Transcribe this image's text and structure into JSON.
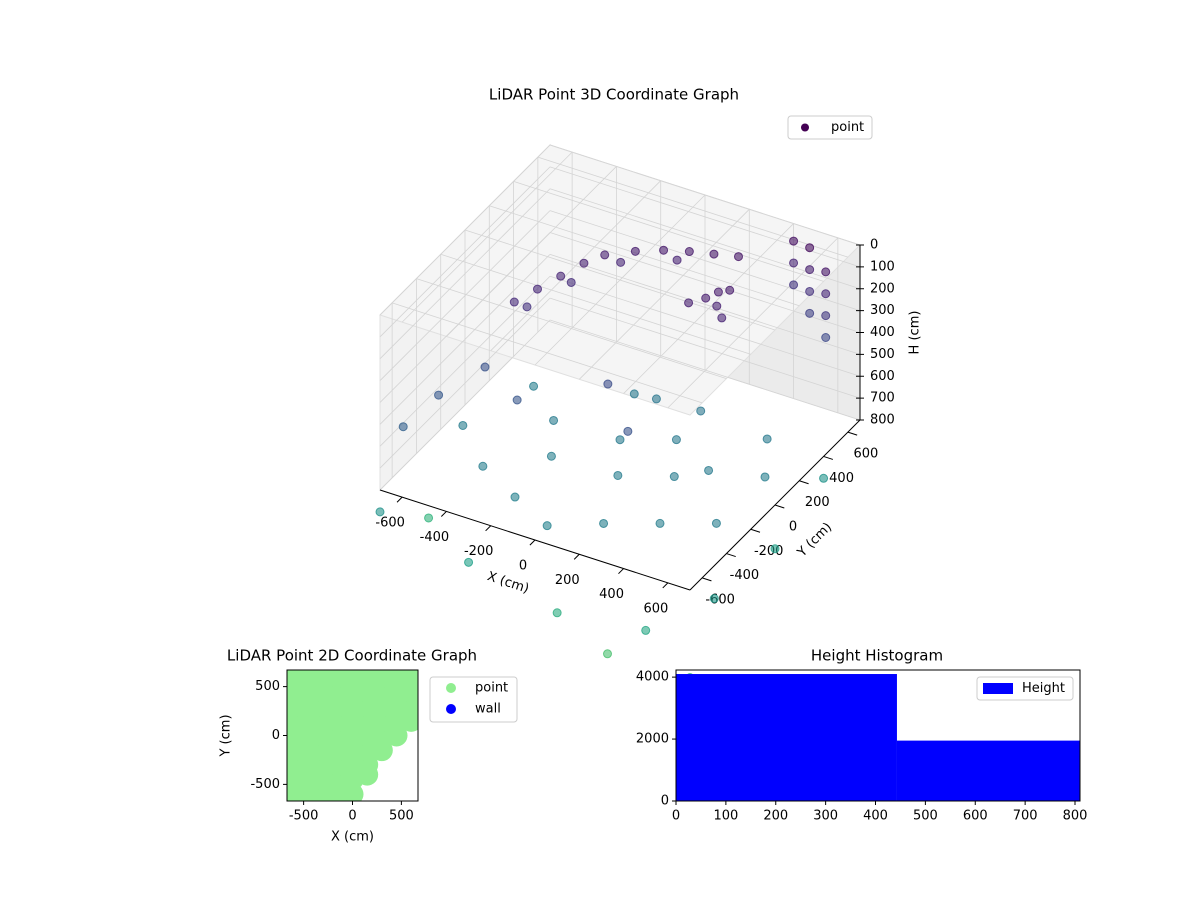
{
  "chart_data": [
    {
      "type": "scatter3d",
      "title": "LiDAR Point 3D Coordinate Graph",
      "xlabel": "X (cm)",
      "ylabel": "Y (cm)",
      "zlabel": "H (cm)",
      "xlim": [
        -700,
        700
      ],
      "ylim": [
        -700,
        700
      ],
      "zlim": [
        0,
        800
      ],
      "z_inverted": true,
      "xticks": [
        -600,
        -400,
        -200,
        0,
        200,
        400,
        600
      ],
      "yticks": [
        -600,
        -400,
        -200,
        0,
        200,
        400,
        600
      ],
      "zticks": [
        0,
        100,
        200,
        300,
        400,
        500,
        600,
        700,
        800
      ],
      "grid": true,
      "legend": "upper right",
      "colormap": "viridis",
      "series": [
        {
          "name": "point",
          "color": "#440154",
          "x": [
            -450,
            -400,
            -350,
            -300,
            -250,
            -150,
            -50,
            50,
            150,
            250,
            -420,
            -330,
            -200,
            0,
            200,
            250,
            300,
            280,
            350,
            320,
            500,
            500,
            500,
            500,
            600,
            600,
            600,
            600,
            400,
            400,
            400,
            -600,
            -500,
            -300,
            0,
            200,
            -650,
            -600,
            -400,
            -200,
            0,
            200,
            400,
            600,
            -300,
            0,
            200,
            400,
            500,
            -100,
            100,
            -500,
            300,
            0,
            200,
            -200,
            600,
            -700,
            -300,
            100,
            500,
            700,
            700,
            700,
            -700,
            300,
            700
          ],
          "y": [
            -50,
            50,
            150,
            250,
            330,
            400,
            450,
            480,
            500,
            520,
            0,
            200,
            370,
            470,
            200,
            250,
            250,
            300,
            200,
            320,
            650,
            650,
            650,
            650,
            600,
            600,
            600,
            600,
            700,
            700,
            700,
            -400,
            -200,
            -300,
            -100,
            -300,
            -600,
            -200,
            -400,
            -500,
            -600,
            -500,
            -400,
            -300,
            0,
            0,
            100,
            0,
            300,
            300,
            -200,
            200,
            -100,
            300,
            300,
            -200,
            100,
            -700,
            -700,
            -700,
            -700,
            -500,
            0,
            400,
            -300,
            -650,
            -700
          ],
          "z": [
            220,
            200,
            180,
            160,
            150,
            140,
            130,
            120,
            110,
            100,
            260,
            230,
            190,
            170,
            150,
            140,
            160,
            130,
            170,
            120,
            50,
            150,
            250,
            350,
            100,
            200,
            300,
            400,
            80,
            180,
            280,
            500,
            450,
            480,
            420,
            460,
            550,
            750,
            760,
            780,
            790,
            770,
            760,
            750,
            740,
            730,
            720,
            740,
            730,
            720,
            750,
            760,
            745,
            710,
            700,
            760,
            760,
            900,
            1000,
            1100,
            1050,
            950,
            1000,
            900,
            1150,
            1250,
            1200
          ]
        }
      ]
    },
    {
      "type": "scatter",
      "title": "LiDAR Point 2D Coordinate Graph",
      "xlabel": "X (cm)",
      "ylabel": "Y (cm)",
      "xlim": [
        -670,
        670
      ],
      "ylim": [
        -670,
        670
      ],
      "xticks": [
        -500,
        0,
        500
      ],
      "yticks": [
        -500,
        0,
        500
      ],
      "legend": "outside right",
      "series": [
        {
          "name": "point",
          "color": "#90ee90",
          "x": [
            -600,
            -600,
            -600,
            -600,
            -600,
            -600,
            -600,
            -600,
            -600,
            -450,
            -450,
            -450,
            -450,
            -450,
            -450,
            -450,
            -450,
            -450,
            -300,
            -300,
            -300,
            -300,
            -300,
            -300,
            -300,
            -300,
            -300,
            -150,
            -150,
            -150,
            -150,
            -150,
            -150,
            -150,
            -150,
            -150,
            0,
            0,
            0,
            0,
            0,
            0,
            0,
            0,
            0,
            150,
            150,
            150,
            150,
            150,
            150,
            150,
            300,
            300,
            300,
            300,
            300,
            300,
            450,
            450,
            450,
            450,
            450,
            600,
            600,
            600,
            600,
            150
          ],
          "y": [
            -600,
            -450,
            -300,
            -150,
            0,
            150,
            300,
            450,
            600,
            -600,
            -450,
            -300,
            -150,
            0,
            150,
            300,
            450,
            600,
            -600,
            -450,
            -300,
            -150,
            0,
            150,
            300,
            450,
            600,
            -600,
            -450,
            -300,
            -150,
            0,
            150,
            300,
            450,
            600,
            -600,
            -450,
            -300,
            -150,
            0,
            150,
            300,
            450,
            600,
            -300,
            -150,
            0,
            150,
            300,
            450,
            600,
            -150,
            0,
            150,
            300,
            450,
            600,
            0,
            150,
            300,
            450,
            600,
            150,
            300,
            450,
            600,
            -400
          ]
        },
        {
          "name": "wall",
          "color": "#0000ff",
          "x": [],
          "y": []
        }
      ]
    },
    {
      "type": "histogram",
      "title": "Height Histogram",
      "bins": [
        0,
        443,
        810
      ],
      "xlim": [
        0,
        810
      ],
      "ylim": [
        0,
        4230
      ],
      "xticks": [
        0,
        100,
        200,
        300,
        400,
        500,
        600,
        700,
        800
      ],
      "yticks": [
        0,
        2000,
        4000
      ],
      "legend": "upper right",
      "series": [
        {
          "name": "Height",
          "color": "#0000ff",
          "values": [
            4100,
            1950
          ]
        }
      ]
    }
  ]
}
